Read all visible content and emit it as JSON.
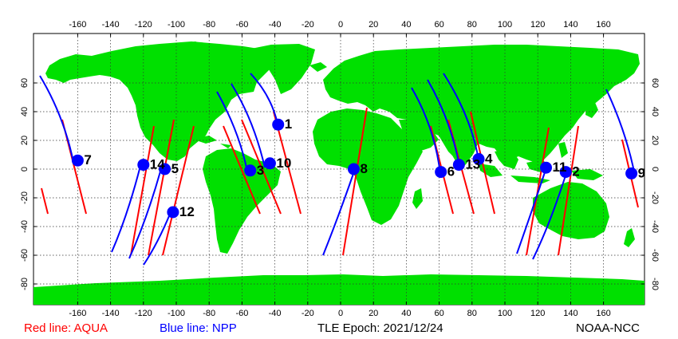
{
  "colors": {
    "land": "#00e000",
    "aqua_track": "#ff0000",
    "npp_track": "#0000ff",
    "sat_marker": "#0000ff"
  },
  "axes": {
    "lon_ticks": [
      -160,
      -140,
      -120,
      -100,
      -80,
      -60,
      -40,
      -20,
      0,
      20,
      40,
      60,
      80,
      100,
      120,
      140,
      160
    ],
    "lat_ticks": [
      60,
      40,
      20,
      0,
      -20,
      -40,
      -60,
      -80
    ]
  },
  "satellites": [
    {
      "label": "1",
      "lon": -38,
      "lat": 31
    },
    {
      "label": "2",
      "lon": 137,
      "lat": -2
    },
    {
      "label": "3",
      "lon": -55,
      "lat": -1
    },
    {
      "label": "4",
      "lon": 84,
      "lat": 7
    },
    {
      "label": "5",
      "lon": -107,
      "lat": 0
    },
    {
      "label": "6",
      "lon": 61,
      "lat": -2
    },
    {
      "label": "7",
      "lon": -160,
      "lat": 6
    },
    {
      "label": "8",
      "lon": 8,
      "lat": 0
    },
    {
      "label": "9",
      "lon": 177,
      "lat": -3
    },
    {
      "label": "10",
      "lon": -43,
      "lat": 4
    },
    {
      "label": "11",
      "lon": 125,
      "lat": 1
    },
    {
      "label": "12",
      "lon": -102,
      "lat": -30
    },
    {
      "label": "13",
      "lon": 72,
      "lat": 3
    },
    {
      "label": "14",
      "lon": -120,
      "lat": 3
    }
  ],
  "legend": {
    "aqua": "Red line: AQUA",
    "npp": "Blue line: NPP",
    "epoch": "TLE Epoch: 2021/12/24",
    "credit": "NOAA-NCC"
  }
}
